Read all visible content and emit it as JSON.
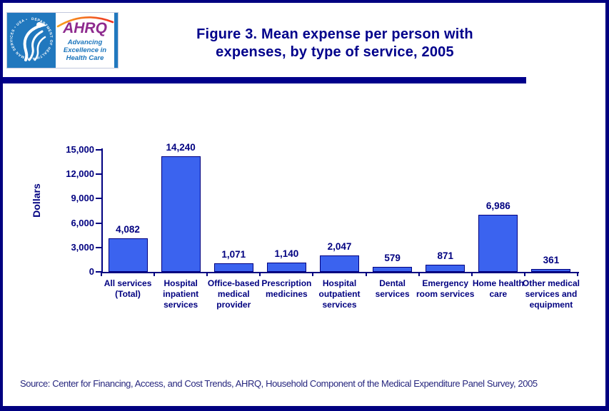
{
  "header": {
    "title_line1": "Figure 3. Mean expense per person with",
    "title_line2": "expenses, by type of service, 2005",
    "logo": {
      "hhs_seal_text": "DEPARTMENT OF HEALTH & HUMAN SERVICES • USA •",
      "ahrq_acronym": "AHRQ",
      "tagline": [
        "Advancing",
        "Excellence in",
        "Health Care"
      ]
    }
  },
  "chart_data": {
    "type": "bar",
    "title": "Figure 3. Mean expense per person with expenses, by type of service, 2005",
    "xlabel": "",
    "ylabel": "Dollars",
    "ylim": [
      0,
      15000
    ],
    "yticks": [
      0,
      3000,
      6000,
      9000,
      12000,
      15000
    ],
    "ytick_labels": [
      "0",
      "3,000",
      "6,000",
      "9,000",
      "12,000",
      "15,000"
    ],
    "categories": [
      "All services (Total)",
      "Hospital inpatient services",
      "Office-based medical provider",
      "Prescription medicines",
      "Hospital outpatient services",
      "Dental services",
      "Emergency room services",
      "Home health care",
      "Other medical services and equipment"
    ],
    "values": [
      4082,
      14240,
      1071,
      1140,
      2047,
      579,
      871,
      6986,
      361
    ],
    "value_labels": [
      "4,082",
      "14,240",
      "1,071",
      "1,140",
      "2,047",
      "579",
      "871",
      "6,986",
      "361"
    ],
    "bar_color": "#3B63EF",
    "bar_border_color": "#000080",
    "axis_color": "#000080",
    "label_color": "#000080",
    "grid": false,
    "legend": "none"
  },
  "footer": {
    "source": "Source: Center for Financing, Access, and Cost Trends, AHRQ, Household Component of the Medical Expenditure Panel Survey, 2005"
  },
  "colors": {
    "page_border": "#000080",
    "divider_bar": "#00008B",
    "title_text": "#00008B",
    "hhs_blue": "#2178BE",
    "ahrq_purple": "#8E2A8E",
    "tagline_blue": "#1B75BC",
    "source_text": "#26267E"
  }
}
